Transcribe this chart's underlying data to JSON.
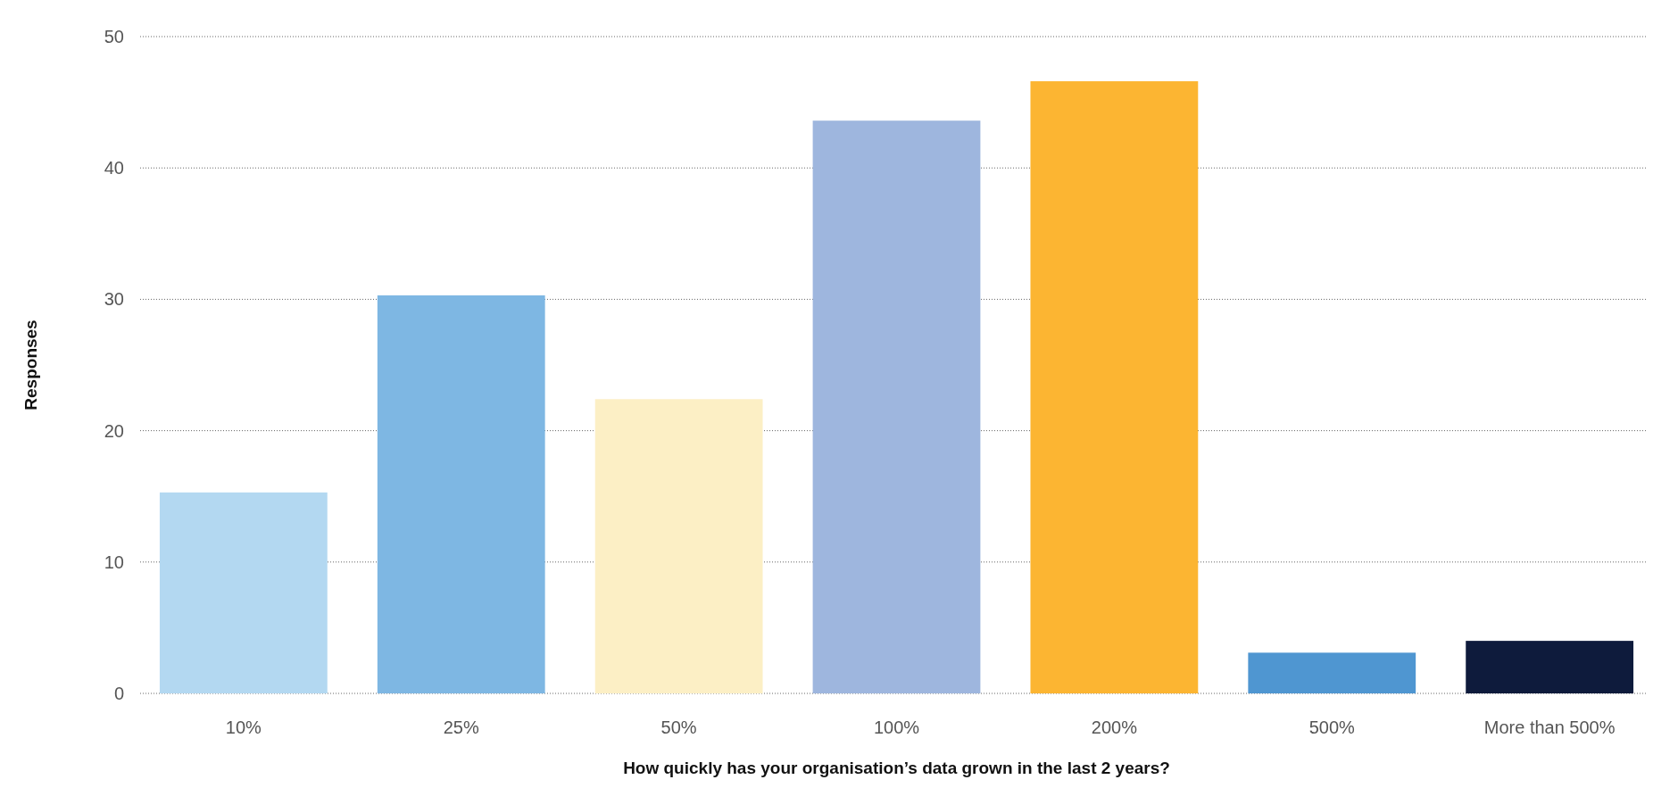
{
  "chart_data": {
    "type": "bar",
    "xlabel": "How quickly has your organisation’s data grown in the last 2 years?",
    "ylabel": "Responses",
    "categories": [
      "10%",
      "25%",
      "50%",
      "100%",
      "200%",
      "500%",
      "More than 500%"
    ],
    "values": [
      15.3,
      30.3,
      22.4,
      43.6,
      46.6,
      3.1,
      4.0
    ],
    "colors": [
      "#b3d8f1",
      "#7eb7e3",
      "#fcefc5",
      "#9eb6de",
      "#fcb532",
      "#4f96d1",
      "#0e1b3c"
    ],
    "ylim": [
      0,
      50
    ],
    "yticks": [
      0,
      10,
      20,
      30,
      40,
      50
    ],
    "grid": "y"
  }
}
